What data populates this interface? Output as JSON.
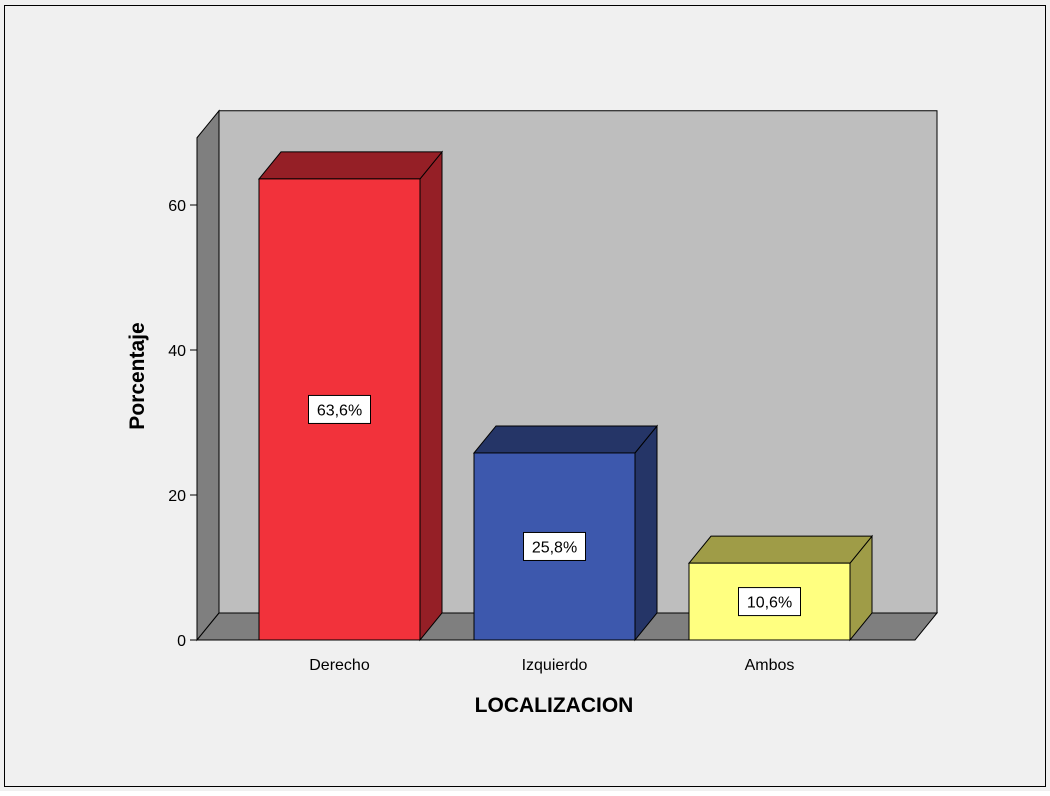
{
  "chart_data": {
    "type": "bar",
    "style": "3d",
    "xlabel": "LOCALIZACION",
    "ylabel": "Porcentaje",
    "categories": [
      "Derecho",
      "Izquierdo",
      "Ambos"
    ],
    "values": [
      63.6,
      25.8,
      10.6
    ],
    "data_labels": [
      "63,6%",
      "25,8%",
      "10,6%"
    ],
    "ylim": [
      0,
      73
    ],
    "yticks": [
      0,
      20,
      40,
      60
    ],
    "ytick_labels": [
      "0",
      "20",
      "40",
      "60"
    ],
    "grid": false,
    "legend": "none",
    "colors": {
      "background": "#f0f0f0",
      "wall": "#bebebe",
      "side_wall": "#7f7f7f",
      "floor": "#7f7f7f",
      "bars": [
        {
          "front": "#f2323b",
          "top": "#951f26",
          "side": "#951f26"
        },
        {
          "front": "#3d58ad",
          "top": "#253567",
          "side": "#253567"
        },
        {
          "front": "#ffff80",
          "top": "#9f9c47",
          "side": "#9f9c47"
        }
      ]
    }
  }
}
